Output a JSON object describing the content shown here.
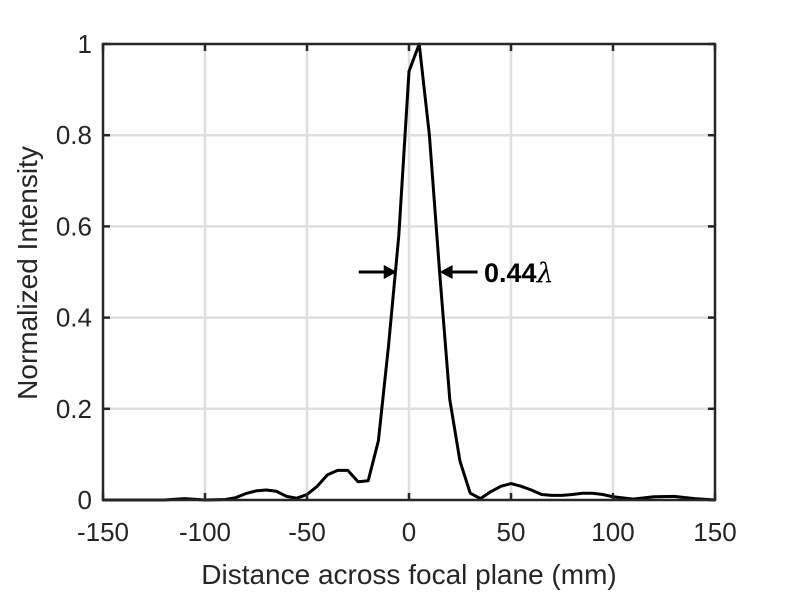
{
  "chart_data": {
    "type": "line",
    "title": "",
    "xlabel": "Distance across focal plane (mm)",
    "ylabel": "Normalized Intensity",
    "xlim": [
      -150,
      150
    ],
    "ylim": [
      0,
      1
    ],
    "xticks": [
      -150,
      -100,
      -50,
      0,
      50,
      100,
      150
    ],
    "xtick_labels": [
      "-150",
      "-100",
      "-50",
      "0",
      "50",
      "100",
      "150"
    ],
    "yticks": [
      0,
      0.2,
      0.4,
      0.6,
      0.8,
      1
    ],
    "ytick_labels": [
      "0",
      "0.2",
      "0.4",
      "0.6",
      "0.8",
      "1"
    ],
    "grid": true,
    "series": [
      {
        "color": "#000000",
        "x": [
          -150,
          -140,
          -130,
          -120,
          -110,
          -100,
          -90,
          -85,
          -80,
          -75,
          -70,
          -65,
          -60,
          -55,
          -50,
          -45,
          -40,
          -35,
          -30,
          -25,
          -20,
          -15,
          -10,
          -5,
          0,
          5,
          10,
          15,
          20,
          25,
          30,
          35,
          40,
          45,
          50,
          55,
          60,
          65,
          70,
          75,
          80,
          85,
          90,
          95,
          100,
          110,
          120,
          130,
          140,
          150
        ],
        "y": [
          0,
          0,
          0,
          0,
          0.003,
          0,
          0.001,
          0.005,
          0.014,
          0.02,
          0.022,
          0.019,
          0.008,
          0.004,
          0.012,
          0.03,
          0.055,
          0.065,
          0.065,
          0.04,
          0.042,
          0.13,
          0.34,
          0.58,
          0.94,
          1.0,
          0.8,
          0.5,
          0.22,
          0.085,
          0.015,
          0.003,
          0.018,
          0.03,
          0.036,
          0.03,
          0.022,
          0.012,
          0.01,
          0.01,
          0.012,
          0.015,
          0.015,
          0.012,
          0.007,
          0.002,
          0.007,
          0.008,
          0.003,
          0
        ]
      }
    ],
    "annotations": [
      {
        "text": "0.44",
        "symbol": "λ",
        "arrow_left_y": 0.5,
        "arrow_right_y": 0.5,
        "arrow_left_x": -6,
        "arrow_right_x": 15
      }
    ]
  }
}
